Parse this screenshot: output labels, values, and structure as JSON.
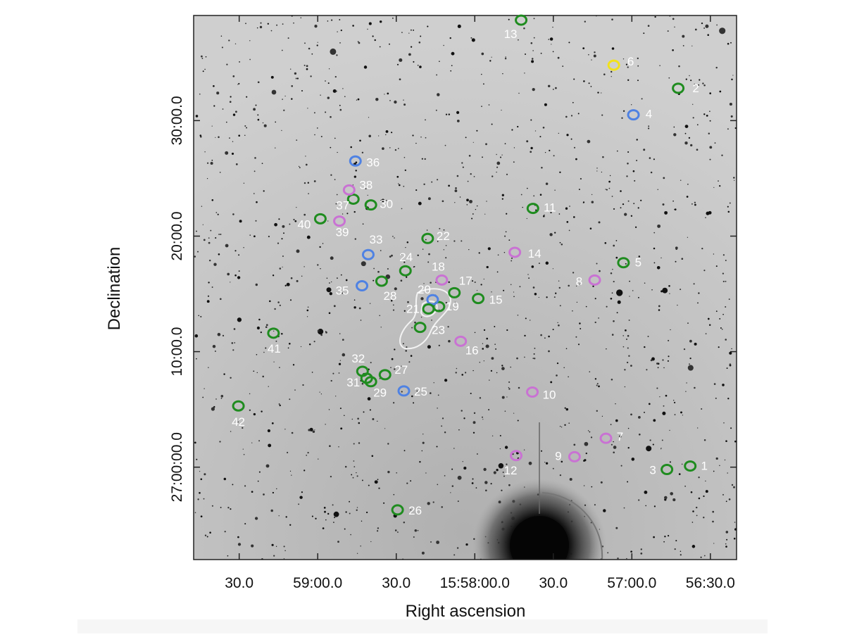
{
  "chart_data": {
    "type": "scatter",
    "x_label": "Right ascension",
    "y_label": "Declination",
    "xlim": [
      57587.4,
      57380.0
    ],
    "ylim": [
      -8.0,
      39.1
    ],
    "xticks": [
      {
        "value": 57570,
        "label": "30.0"
      },
      {
        "value": 57540,
        "label": "59:00.0"
      },
      {
        "value": 57510,
        "label": "30.0"
      },
      {
        "value": 57480,
        "label": "15:58:00.0"
      },
      {
        "value": 57450,
        "label": "30.0"
      },
      {
        "value": 57420,
        "label": "57:00.0"
      },
      {
        "value": 57390,
        "label": "56:30.0"
      }
    ],
    "yticks": [
      {
        "value": 0,
        "label": "27:00:00.0"
      },
      {
        "value": 10,
        "label": "10:00.0"
      },
      {
        "value": 20,
        "label": "20:00.0"
      },
      {
        "value": 30,
        "label": "30:00.0"
      }
    ],
    "point_labels": [
      "1",
      "2",
      "3",
      "4",
      "5",
      "6",
      "7",
      "8",
      "9",
      "10",
      "11",
      "12",
      "13",
      "14",
      "15",
      "16",
      "17",
      "18",
      "19",
      "20",
      "21",
      "22",
      "23",
      "24",
      "25",
      "26",
      "27",
      "28",
      "29",
      "30",
      "31",
      "32",
      "33",
      "35",
      "36",
      "37",
      "38",
      "39",
      "40",
      "41",
      "42"
    ],
    "x": [
      57397.7,
      57402.3,
      57406.6,
      57419.4,
      57423.2,
      57426.9,
      57429.9,
      57434.2,
      57441.9,
      57458.0,
      57457.8,
      57464.2,
      57462.3,
      57464.7,
      57478.7,
      57485.4,
      57487.8,
      57492.6,
      57493.7,
      57496.1,
      57497.7,
      57498.0,
      57500.9,
      57506.5,
      57507.1,
      57509.5,
      57514.3,
      57515.6,
      57519.7,
      57519.7,
      57521.3,
      57522.9,
      57520.7,
      57523.1,
      57525.6,
      57526.4,
      57528.0,
      57531.7,
      57539.0,
      57556.9,
      57570.3
    ],
    "y": [
      0.1,
      32.8,
      -0.2,
      30.5,
      17.7,
      34.8,
      2.5,
      16.2,
      0.9,
      6.5,
      22.4,
      1.0,
      38.7,
      18.6,
      14.6,
      10.9,
      15.1,
      16.2,
      13.9,
      14.5,
      13.7,
      19.8,
      12.1,
      17.0,
      6.6,
      -3.7,
      8.0,
      16.1,
      7.4,
      22.7,
      7.7,
      8.3,
      18.4,
      15.7,
      26.5,
      23.2,
      24.0,
      21.3,
      21.5,
      11.6,
      5.3
    ],
    "colors": [
      "#1f8c1f",
      "#1f8c1f",
      "#1f8c1f",
      "#4f82e3",
      "#1f8c1f",
      "#f2e21a",
      "#c972d3",
      "#c972d3",
      "#c972d3",
      "#c972d3",
      "#1f8c1f",
      "#c972d3",
      "#1f8c1f",
      "#c972d3",
      "#1f8c1f",
      "#c972d3",
      "#1f8c1f",
      "#c972d3",
      "#1f8c1f",
      "#4f82e3",
      "#1f8c1f",
      "#1f8c1f",
      "#1f8c1f",
      "#1f8c1f",
      "#4f82e3",
      "#1f8c1f",
      "#1f8c1f",
      "#1f8c1f",
      "#1f8c1f",
      "#1f8c1f",
      "#1f8c1f",
      "#1f8c1f",
      "#4f82e3",
      "#4f82e3",
      "#4f82e3",
      "#1f8c1f",
      "#c972d3",
      "#c972d3",
      "#1f8c1f",
      "#1f8c1f",
      "#1f8c1f"
    ]
  }
}
